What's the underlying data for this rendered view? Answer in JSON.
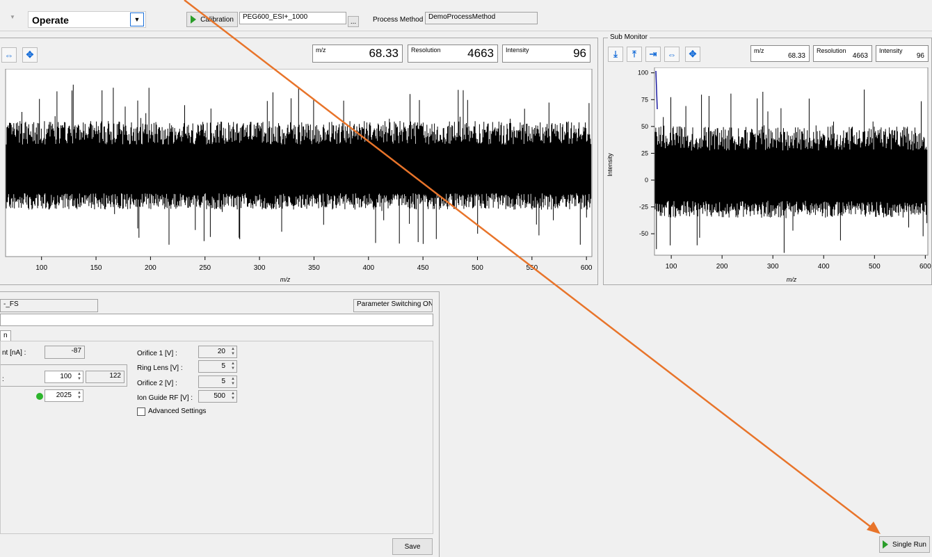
{
  "toolbar": {
    "mode_value": "Operate",
    "calibration_label": "Calibration",
    "calibration_file": "PEG600_ESI+_1000",
    "browse_label": "...",
    "process_method_label": "Process Method",
    "process_method_value": "DemoProcessMethod"
  },
  "main_monitor": {
    "mz_label": "m/z",
    "mz_value": "68.33",
    "resolution_label": "Resolution",
    "resolution_value": "4663",
    "intensity_label": "Intensity",
    "intensity_value": "96",
    "x_axis_label": "m/z"
  },
  "sub_monitor": {
    "title": "Sub Monitor",
    "mz_label": "m/z",
    "mz_value": "68.33",
    "resolution_label": "Resolution",
    "resolution_value": "4663",
    "intensity_label": "Intensity",
    "intensity_value": "96",
    "x_axis_label": "m/z",
    "y_axis_label": "Intensity"
  },
  "chart_data": [
    {
      "type": "line",
      "description_series": "noise spectrum",
      "x_ticks": [
        "100",
        "150",
        "200",
        "250",
        "300",
        "350",
        "400",
        "450",
        "500",
        "550",
        "600"
      ],
      "xlim": [
        67,
        605
      ],
      "xlabel": "m/z",
      "ylim": [
        -80,
        100
      ],
      "noise_band": {
        "upper": 50,
        "lower": -35,
        "spike_max": 85,
        "spike_min": -70
      }
    },
    {
      "type": "line",
      "x_ticks": [
        "100",
        "200",
        "300",
        "400",
        "500",
        "600"
      ],
      "y_ticks": [
        "100",
        "75",
        "50",
        "25",
        "0",
        "-25",
        "-50"
      ],
      "xlim": [
        67,
        605
      ],
      "ylim": [
        -70,
        105
      ],
      "xlabel": "m/z",
      "ylabel": "Intensity",
      "noise_band": {
        "upper": 50,
        "lower": -35,
        "spike_max": 85,
        "spike_min": -70
      }
    }
  ],
  "params": {
    "method_name_partial": "-_FS",
    "parameter_switching": "Parameter Switching ON",
    "tab_partial": "n",
    "current_label_partial": "nt [nA] :",
    "current_value": "-87",
    "row2_label_partial": ":",
    "row2_set": "100",
    "row2_actual": "122",
    "row3_set": "2025",
    "orifice1_label": "Orifice 1 [V] :",
    "orifice1_value": "20",
    "ring_lens_label": "Ring Lens [V] :",
    "ring_lens_value": "5",
    "orifice2_label": "Orifice 2 [V] :",
    "orifice2_value": "5",
    "ion_guide_label": "Ion Guide RF [V] :",
    "ion_guide_value": "500",
    "advanced_label": "Advanced Settings",
    "save_label": "Save"
  },
  "single_run_label": "Single Run",
  "colors": {
    "annotation_arrow": "#e8742a",
    "status_led": "#2db52d",
    "accent_blue": "#1a6fd8"
  }
}
